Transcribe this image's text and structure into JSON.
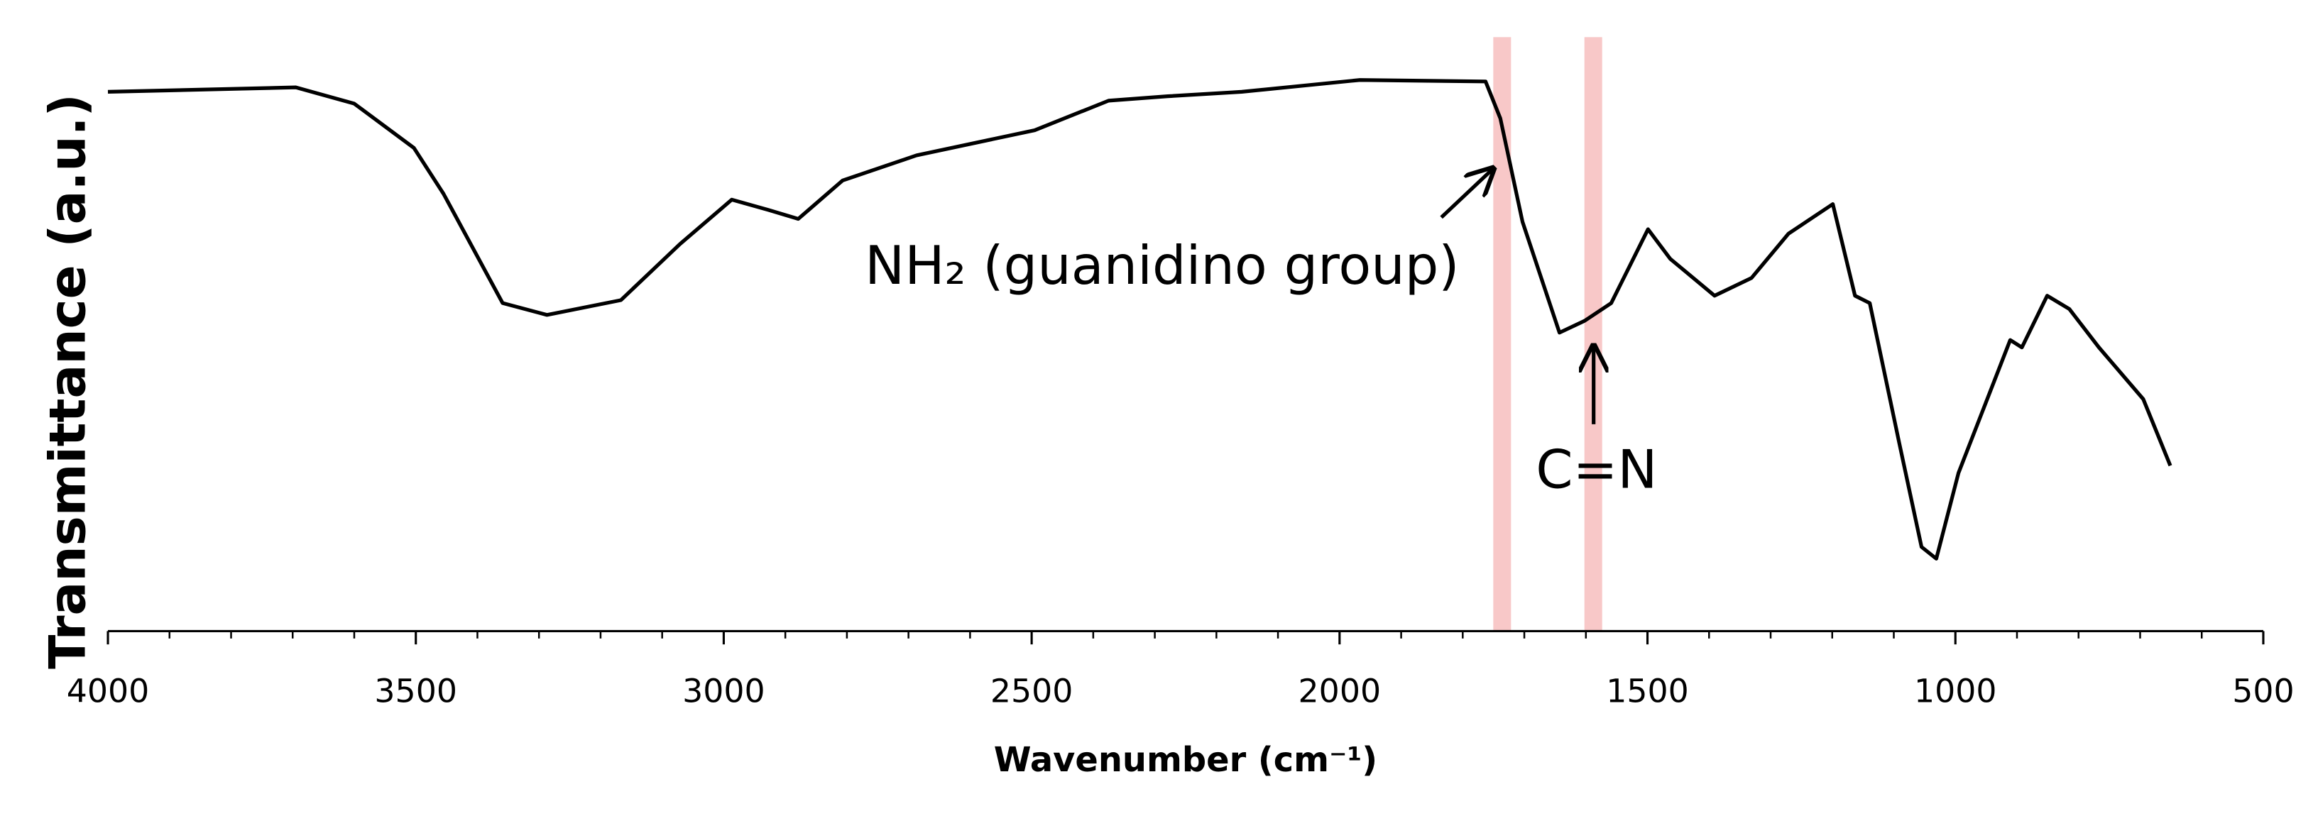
{
  "chart_data": {
    "type": "line",
    "x_label": "Wavenumber (cm⁻¹)",
    "y_label": "Transmittance (a.u.)",
    "xlim": [
      4000,
      500
    ],
    "ylim": [
      0,
      100
    ],
    "xticks": [
      4000,
      3500,
      3000,
      2500,
      2000,
      1500,
      1000,
      500
    ],
    "xminorticks": [
      3900,
      3800,
      3700,
      3600,
      3400,
      3300,
      3200,
      3100,
      2900,
      2800,
      2700,
      2600,
      2400,
      2300,
      2200,
      2100,
      1900,
      1800,
      1700,
      1600,
      1400,
      1300,
      1200,
      1100,
      900,
      800,
      700,
      600
    ],
    "series": [
      {
        "color": "#000000",
        "x": [
          4000,
          3695,
          3600,
          3503,
          3455,
          3359,
          3287,
          3167,
          3071,
          2987,
          2927,
          2879,
          2807,
          2687,
          2495,
          2375,
          2279,
          2159,
          1967,
          1763,
          1739,
          1703,
          1643,
          1602,
          1559,
          1499,
          1463,
          1391,
          1331,
          1271,
          1199,
          1163,
          1139,
          1091,
          1055,
          1031,
          995,
          911,
          892,
          851,
          815,
          767,
          695,
          651
        ],
        "values": [
          91.25,
          92,
          89.25,
          81.75,
          74,
          55.5,
          53.5,
          56,
          65.5,
          73,
          71.25,
          69.75,
          76.25,
          80.5,
          84.75,
          89.75,
          90.5,
          91.25,
          93.25,
          93,
          86.75,
          69.25,
          50.5,
          52.5,
          55.5,
          68,
          63,
          56.75,
          59.75,
          67.25,
          72.25,
          56.75,
          55.5,
          31.75,
          14.25,
          12.25,
          26.75,
          49.25,
          48,
          56.75,
          54.5,
          48,
          39.25,
          28
        ]
      }
    ],
    "highlights": {
      "color": "#f8c8c8",
      "x": [
        1736,
        1588
      ]
    },
    "annotations": [
      {
        "text": "NH₂ (guanidino group)",
        "x": 1736
      },
      {
        "text": "C=N",
        "x": 1588
      }
    ]
  }
}
